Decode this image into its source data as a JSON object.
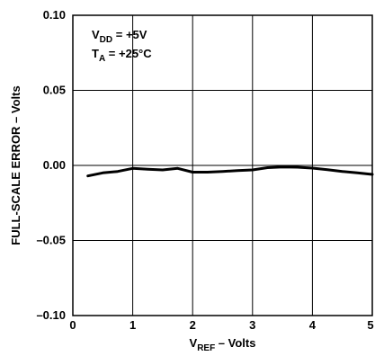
{
  "chart_data": {
    "type": "line",
    "title": "",
    "xlabel": {
      "main": "V",
      "sub": "REF",
      "rest": " – Volts"
    },
    "ylabel": "FULL-SCALE ERROR – Volts",
    "xlim": [
      0,
      5
    ],
    "ylim": [
      -0.1,
      0.1
    ],
    "x_ticks": [
      0,
      1,
      2,
      3,
      4,
      5
    ],
    "x_tick_labels": [
      "0",
      "1",
      "2",
      "3",
      "4",
      "5"
    ],
    "y_ticks": [
      0.1,
      0.05,
      0.0,
      -0.05,
      -0.1
    ],
    "y_tick_labels": [
      "0.10",
      "0.05",
      "0.00",
      "–0.05",
      "–0.10"
    ],
    "grid": true,
    "annotations": [
      {
        "main": "V",
        "sub": "DD",
        "rest": " = +5V"
      },
      {
        "main": "T",
        "sub": "A",
        "rest": " = +25°C"
      }
    ],
    "series": [
      {
        "x": [
          0.25,
          0.5,
          0.75,
          1.0,
          1.25,
          1.5,
          1.75,
          2.0,
          2.25,
          2.5,
          2.75,
          3.0,
          3.25,
          3.5,
          3.75,
          4.0,
          4.25,
          4.5,
          4.75,
          5.0
        ],
        "y": [
          -0.007,
          -0.005,
          -0.004,
          -0.002,
          -0.0025,
          -0.003,
          -0.002,
          -0.0045,
          -0.0045,
          -0.004,
          -0.0035,
          -0.003,
          -0.0015,
          -0.001,
          -0.0012,
          -0.0018,
          -0.0028,
          -0.004,
          -0.005,
          -0.006
        ]
      }
    ],
    "colors": {
      "line": "#000000",
      "grid": "#000000",
      "background": "#ffffff"
    }
  }
}
